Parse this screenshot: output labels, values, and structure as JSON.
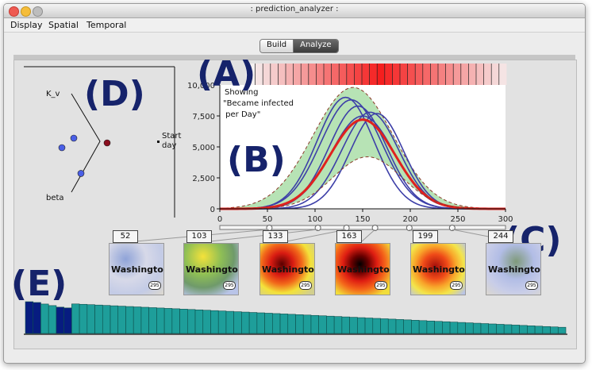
{
  "window": {
    "title": ": prediction_analyzer :"
  },
  "menu": [
    "Display",
    "Spatial",
    "Temporal"
  ],
  "mode_buttons": {
    "build": "Build",
    "analyze": "Analyze"
  },
  "params": {
    "k_v": "K_v",
    "beta": "beta",
    "start_day": "Start\nday"
  },
  "chart_note": [
    "Showing",
    "\"Became infected",
    " per Day\""
  ],
  "panel_labels": {
    "a": "(A)",
    "b": "(B)",
    "c": "(C)",
    "d": "(D)",
    "e": "(E)"
  },
  "timeline": {
    "days": [
      "52",
      "103",
      "133",
      "163",
      "199",
      "244"
    ]
  },
  "map_label": "Washington",
  "route_shield": "295",
  "colors": {
    "window_bg": "#ececec",
    "panel_bg": "#e2e2e2",
    "uncertainty_band": "#aadea8",
    "ensemble_lines": "#3d3fa8",
    "mean_line": "#e0221e",
    "histogram_teal": "#1e9e9a",
    "histogram_selected": "#071c80",
    "param_points": "#4a5fe6",
    "param_selected": "#8a0f1e",
    "label_navy": "#16236b"
  },
  "chart_data": {
    "type": "line",
    "xlim": [
      0,
      300
    ],
    "ylim": [
      0,
      10000
    ],
    "xticks": [
      "0",
      "50",
      "100",
      "150",
      "200",
      "250",
      "300"
    ],
    "yticks": [
      "0",
      "2,500",
      "5,000",
      "7,500",
      "10,000"
    ],
    "series": [
      {
        "role": "ensemble",
        "peak_day": 132,
        "peak": 9000,
        "width": 30
      },
      {
        "role": "ensemble",
        "peak_day": 138,
        "peak": 8800,
        "width": 32
      },
      {
        "role": "ensemble",
        "peak_day": 145,
        "peak": 8300,
        "width": 30
      },
      {
        "role": "ensemble",
        "peak_day": 150,
        "peak": 7500,
        "width": 33
      },
      {
        "role": "ensemble",
        "peak_day": 158,
        "peak": 7800,
        "width": 30
      },
      {
        "role": "ensemble",
        "peak_day": 165,
        "peak": 7700,
        "width": 28
      },
      {
        "role": "mean",
        "peak_day": 150,
        "peak": 7200,
        "width": 34
      },
      {
        "role": "lower",
        "peak_day": 155,
        "peak": 4200,
        "width": 36
      }
    ],
    "band_upper": {
      "peak_day": 140,
      "peak": 9800,
      "width": 42
    },
    "band_lower": {
      "peak_day": 155,
      "peak": 4200,
      "width": 36
    },
    "parameter_points": [
      {
        "k_v": 0.12,
        "beta": 0.55,
        "selected": false
      },
      {
        "k_v": 0.22,
        "beta": 0.45,
        "selected": false
      },
      {
        "k_v": 0.28,
        "beta": 0.82,
        "selected": false
      },
      {
        "k_v": 0.5,
        "beta": 0.5,
        "selected": true
      }
    ],
    "histogram": [
      {
        "value": 41,
        "selected": true
      },
      {
        "value": 40,
        "selected": true
      },
      {
        "value": 38,
        "selected": false
      },
      {
        "value": 36,
        "selected": false
      },
      {
        "value": 34,
        "selected": true
      },
      {
        "value": 33,
        "selected": true
      }
    ],
    "histogram_count": 70,
    "histogram_min": 8
  }
}
